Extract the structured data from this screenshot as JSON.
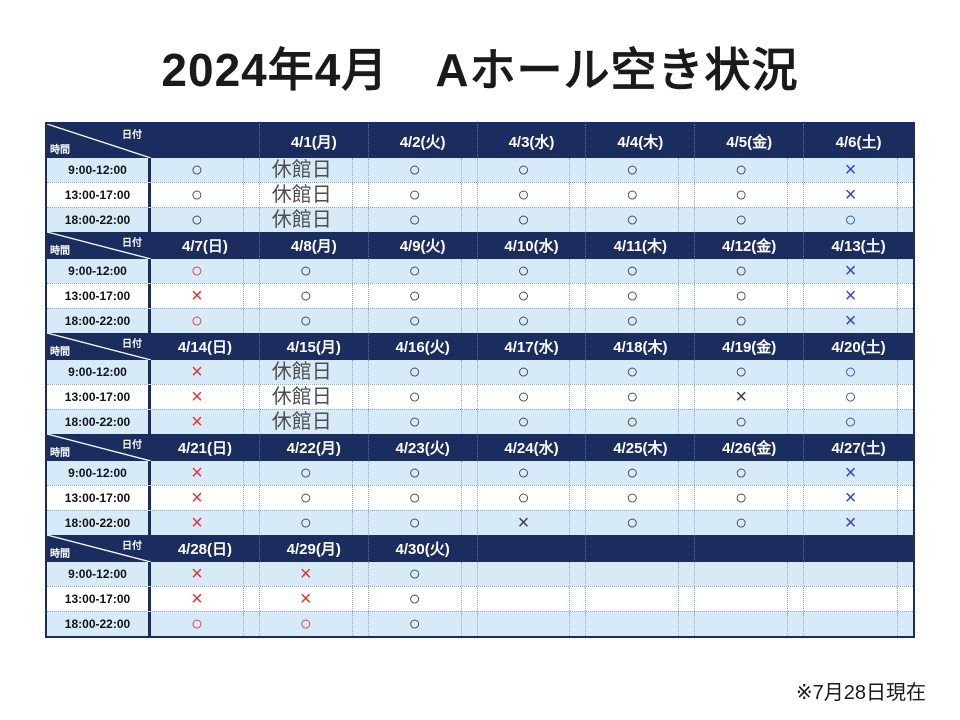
{
  "title": "2024年4月　Aホール空き状況",
  "note": "※7月28日現在",
  "corner": {
    "top_right": "日付",
    "bottom_left": "時間"
  },
  "time_slots": [
    "9:00-12:00",
    "13:00-17:00",
    "18:00-22:00"
  ],
  "colors": {
    "header_bg": "#1b2c5e",
    "alt_row_bg": "#d6eaf8",
    "mark_black": "#3b3b3b",
    "mark_red": "#e63030",
    "mark_blue": "#2a46c8"
  },
  "weeks": [
    {
      "dates": [
        "",
        "4/1(月)",
        "4/2(火)",
        "4/3(水)",
        "4/4(木)",
        "4/5(金)",
        "4/6(土)"
      ],
      "rows": [
        {
          "time": "9:00-12:00",
          "cells": [
            {
              "text": "○",
              "color": "black"
            },
            {
              "text": "休館日",
              "color": "closed"
            },
            {
              "text": "○",
              "color": "black"
            },
            {
              "text": "○",
              "color": "black"
            },
            {
              "text": "○",
              "color": "black"
            },
            {
              "text": "○",
              "color": "black"
            },
            {
              "text": "×",
              "color": "blue"
            }
          ]
        },
        {
          "time": "13:00-17:00",
          "cells": [
            {
              "text": "○",
              "color": "black"
            },
            {
              "text": "休館日",
              "color": "closed"
            },
            {
              "text": "○",
              "color": "black"
            },
            {
              "text": "○",
              "color": "black"
            },
            {
              "text": "○",
              "color": "black"
            },
            {
              "text": "○",
              "color": "black"
            },
            {
              "text": "×",
              "color": "blue"
            }
          ]
        },
        {
          "time": "18:00-22:00",
          "cells": [
            {
              "text": "○",
              "color": "black"
            },
            {
              "text": "休館日",
              "color": "closed"
            },
            {
              "text": "○",
              "color": "black"
            },
            {
              "text": "○",
              "color": "black"
            },
            {
              "text": "○",
              "color": "black"
            },
            {
              "text": "○",
              "color": "black"
            },
            {
              "text": "○",
              "color": "blue"
            }
          ]
        }
      ]
    },
    {
      "dates": [
        "4/7(日)",
        "4/8(月)",
        "4/9(火)",
        "4/10(水)",
        "4/11(木)",
        "4/12(金)",
        "4/13(土)"
      ],
      "rows": [
        {
          "time": "9:00-12:00",
          "cells": [
            {
              "text": "○",
              "color": "red"
            },
            {
              "text": "○",
              "color": "black"
            },
            {
              "text": "○",
              "color": "black"
            },
            {
              "text": "○",
              "color": "black"
            },
            {
              "text": "○",
              "color": "black"
            },
            {
              "text": "○",
              "color": "black"
            },
            {
              "text": "×",
              "color": "blue"
            }
          ]
        },
        {
          "time": "13:00-17:00",
          "cells": [
            {
              "text": "×",
              "color": "red"
            },
            {
              "text": "○",
              "color": "black"
            },
            {
              "text": "○",
              "color": "black"
            },
            {
              "text": "○",
              "color": "black"
            },
            {
              "text": "○",
              "color": "black"
            },
            {
              "text": "○",
              "color": "black"
            },
            {
              "text": "×",
              "color": "blue"
            }
          ]
        },
        {
          "time": "18:00-22:00",
          "cells": [
            {
              "text": "○",
              "color": "red"
            },
            {
              "text": "○",
              "color": "black"
            },
            {
              "text": "○",
              "color": "black"
            },
            {
              "text": "○",
              "color": "black"
            },
            {
              "text": "○",
              "color": "black"
            },
            {
              "text": "○",
              "color": "black"
            },
            {
              "text": "×",
              "color": "blue"
            }
          ]
        }
      ]
    },
    {
      "dates": [
        "4/14(日)",
        "4/15(月)",
        "4/16(火)",
        "4/17(水)",
        "4/18(木)",
        "4/19(金)",
        "4/20(土)"
      ],
      "rows": [
        {
          "time": "9:00-12:00",
          "cells": [
            {
              "text": "×",
              "color": "red"
            },
            {
              "text": "休館日",
              "color": "closed"
            },
            {
              "text": "○",
              "color": "black"
            },
            {
              "text": "○",
              "color": "black"
            },
            {
              "text": "○",
              "color": "black"
            },
            {
              "text": "○",
              "color": "black"
            },
            {
              "text": "○",
              "color": "blue"
            }
          ]
        },
        {
          "time": "13:00-17:00",
          "cells": [
            {
              "text": "×",
              "color": "red"
            },
            {
              "text": "休館日",
              "color": "closed"
            },
            {
              "text": "○",
              "color": "black"
            },
            {
              "text": "○",
              "color": "black"
            },
            {
              "text": "○",
              "color": "black"
            },
            {
              "text": "×",
              "color": "black"
            },
            {
              "text": "○",
              "color": "blue"
            }
          ]
        },
        {
          "time": "18:00-22:00",
          "cells": [
            {
              "text": "×",
              "color": "red"
            },
            {
              "text": "休館日",
              "color": "closed"
            },
            {
              "text": "○",
              "color": "black"
            },
            {
              "text": "○",
              "color": "black"
            },
            {
              "text": "○",
              "color": "black"
            },
            {
              "text": "○",
              "color": "black"
            },
            {
              "text": "○",
              "color": "blue"
            }
          ]
        }
      ]
    },
    {
      "dates": [
        "4/21(日)",
        "4/22(月)",
        "4/23(火)",
        "4/24(水)",
        "4/25(木)",
        "4/26(金)",
        "4/27(土)"
      ],
      "rows": [
        {
          "time": "9:00-12:00",
          "cells": [
            {
              "text": "×",
              "color": "red"
            },
            {
              "text": "○",
              "color": "black"
            },
            {
              "text": "○",
              "color": "black"
            },
            {
              "text": "○",
              "color": "black"
            },
            {
              "text": "○",
              "color": "black"
            },
            {
              "text": "○",
              "color": "black"
            },
            {
              "text": "×",
              "color": "blue"
            }
          ]
        },
        {
          "time": "13:00-17:00",
          "cells": [
            {
              "text": "×",
              "color": "red"
            },
            {
              "text": "○",
              "color": "black"
            },
            {
              "text": "○",
              "color": "black"
            },
            {
              "text": "○",
              "color": "black"
            },
            {
              "text": "○",
              "color": "black"
            },
            {
              "text": "○",
              "color": "black"
            },
            {
              "text": "×",
              "color": "blue"
            }
          ]
        },
        {
          "time": "18:00-22:00",
          "cells": [
            {
              "text": "×",
              "color": "red"
            },
            {
              "text": "○",
              "color": "black"
            },
            {
              "text": "○",
              "color": "black"
            },
            {
              "text": "×",
              "color": "black"
            },
            {
              "text": "○",
              "color": "black"
            },
            {
              "text": "○",
              "color": "black"
            },
            {
              "text": "×",
              "color": "blue"
            }
          ]
        }
      ]
    },
    {
      "dates": [
        "4/28(日)",
        "4/29(月)",
        "4/30(火)",
        "",
        "",
        "",
        ""
      ],
      "rows": [
        {
          "time": "9:00-12:00",
          "cells": [
            {
              "text": "×",
              "color": "red"
            },
            {
              "text": "×",
              "color": "red"
            },
            {
              "text": "○",
              "color": "black"
            },
            {
              "text": "",
              "color": "none"
            },
            {
              "text": "",
              "color": "none"
            },
            {
              "text": "",
              "color": "none"
            },
            {
              "text": "",
              "color": "none"
            }
          ]
        },
        {
          "time": "13:00-17:00",
          "cells": [
            {
              "text": "×",
              "color": "red"
            },
            {
              "text": "×",
              "color": "red"
            },
            {
              "text": "○",
              "color": "black"
            },
            {
              "text": "",
              "color": "none"
            },
            {
              "text": "",
              "color": "none"
            },
            {
              "text": "",
              "color": "none"
            },
            {
              "text": "",
              "color": "none"
            }
          ]
        },
        {
          "time": "18:00-22:00",
          "cells": [
            {
              "text": "○",
              "color": "red"
            },
            {
              "text": "○",
              "color": "red"
            },
            {
              "text": "○",
              "color": "black"
            },
            {
              "text": "",
              "color": "none"
            },
            {
              "text": "",
              "color": "none"
            },
            {
              "text": "",
              "color": "none"
            },
            {
              "text": "",
              "color": "none"
            }
          ]
        }
      ]
    }
  ]
}
